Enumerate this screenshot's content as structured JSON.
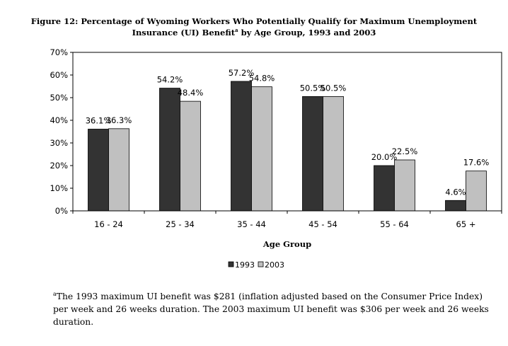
{
  "chart_data": {
    "type": "bar",
    "title_line1": "Figure 12: Percentage of Wyoming Workers Who Potentially Qualify for Maximum Unemployment",
    "title_line2_pre": "Insurance (UI) Benefit",
    "title_sup": "a",
    "title_line2_post": " by Age Group, 1993 and 2003",
    "xlabel": "Age Group",
    "ylabel": "",
    "ylim": [
      0,
      70
    ],
    "yticks": [
      "0%",
      "10%",
      "20%",
      "30%",
      "40%",
      "50%",
      "60%",
      "70%"
    ],
    "categories": [
      "16 - 24",
      "25 - 34",
      "35 - 44",
      "45 - 54",
      "55 - 64",
      "65 +"
    ],
    "series": [
      {
        "name": "1993",
        "color": "#333333",
        "values": [
          36.1,
          54.2,
          57.2,
          50.5,
          20.0,
          4.6
        ],
        "labels": [
          "36.1%",
          "54.2%",
          "57.2%",
          "50.5%",
          "20.0%",
          "4.6%"
        ]
      },
      {
        "name": "2003",
        "color": "#c0c0c0",
        "values": [
          36.3,
          48.4,
          54.8,
          50.5,
          22.5,
          17.6
        ],
        "labels": [
          "36.3%",
          "48.4%",
          "54.8%",
          "50.5%",
          "22.5%",
          "17.6%"
        ]
      }
    ],
    "legend_position": "bottom",
    "grid": false
  },
  "footnote": {
    "sup": "a",
    "text": "The 1993 maximum UI benefit was $281 (inflation adjusted based on the Consumer Price Index) per week and 26 weeks duration. The 2003 maximum UI benefit was $306 per week and 26 weeks duration."
  }
}
